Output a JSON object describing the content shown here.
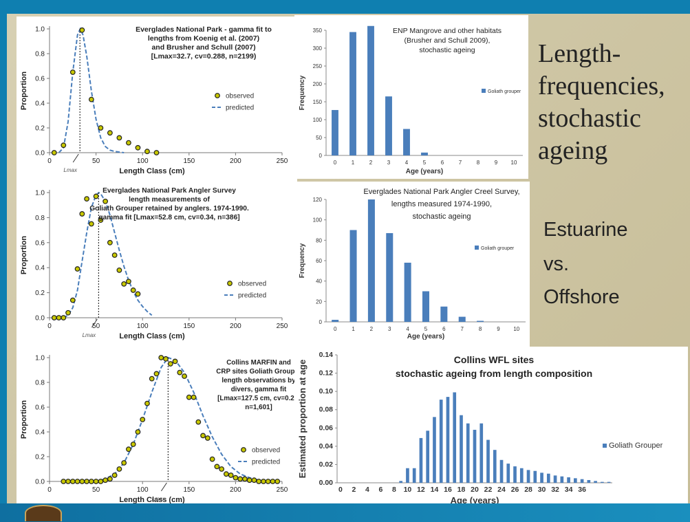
{
  "slide_title_lines": [
    "Length-",
    "frequencies,",
    "stochastic",
    "ageing"
  ],
  "side_labels": [
    "Estuarine",
    "vs.",
    "Offshore"
  ],
  "colors": {
    "frame": "#0f7fb0",
    "bar": "#4a7ebb",
    "marker_fill": "#c8c800",
    "marker_edge": "#222222",
    "fit_line": "#4a7ebb"
  },
  "chart_data": [
    {
      "id": "c1",
      "type": "scatter",
      "title_lines": [
        "Everglades National Park - gamma fit to",
        "lengths from Koenig et al. (2007)",
        "and Brusher and Schull (2007)",
        "[Lmax=32.7, cv=0.288, n=2199)"
      ],
      "xlabel": "Length Class (cm)",
      "ylabel": "Proportion",
      "xlim": [
        0,
        250
      ],
      "ylim": [
        0,
        1.0
      ],
      "xticks": [
        "0",
        "50",
        "100",
        "150",
        "200",
        "250"
      ],
      "yticks": [
        "0.0",
        "0.2",
        "0.4",
        "0.6",
        "0.8",
        "1.0"
      ],
      "annotation": "Lmax",
      "lmax": 32.7,
      "legend": [
        "observed",
        "predicted"
      ],
      "observed": {
        "x": [
          5,
          15,
          25,
          35,
          45,
          55,
          65,
          75,
          85,
          95,
          105,
          115
        ],
        "y": [
          0.0,
          0.06,
          0.65,
          0.99,
          0.43,
          0.2,
          0.16,
          0.12,
          0.08,
          0.04,
          0.01,
          0.0
        ]
      },
      "predicted": {
        "x": [
          10,
          15,
          20,
          25,
          30,
          33,
          36,
          40,
          45,
          50,
          55,
          60,
          65,
          70,
          80
        ],
        "y": [
          0.0,
          0.04,
          0.25,
          0.65,
          0.95,
          1.0,
          0.95,
          0.78,
          0.5,
          0.27,
          0.12,
          0.05,
          0.02,
          0.01,
          0.0
        ]
      }
    },
    {
      "id": "c2",
      "type": "bar",
      "title_lines": [
        "ENP Mangrove and other habitats",
        "(Brusher and Schull 2009),",
        "stochastic ageing"
      ],
      "xlabel": "Age (years)",
      "ylabel": "Frequency",
      "categories": [
        "0",
        "1",
        "2",
        "3",
        "4",
        "5",
        "6",
        "7",
        "8",
        "9",
        "10"
      ],
      "ylim": [
        0,
        350
      ],
      "yticks": [
        "0",
        "50",
        "100",
        "150",
        "200",
        "250",
        "300",
        "350"
      ],
      "series": [
        {
          "name": "Goliath grouper",
          "values": [
            127,
            345,
            362,
            165,
            74,
            8,
            0,
            0,
            0,
            0,
            0
          ]
        }
      ]
    },
    {
      "id": "c3",
      "type": "scatter",
      "title_lines": [
        "Everglades National Park Angler Survey",
        "length measurements of",
        "Goliath Grouper retained by anglers. 1974-1990.",
        "gamma fit [Lmax=52.8 cm, cv=0.34, n=386]"
      ],
      "xlabel": "Length Class (cm)",
      "ylabel": "Proportion",
      "xlim": [
        0,
        250
      ],
      "ylim": [
        0,
        1.0
      ],
      "xticks": [
        "0",
        "50",
        "100",
        "150",
        "200",
        "250"
      ],
      "yticks": [
        "0.0",
        "0.2",
        "0.4",
        "0.6",
        "0.8",
        "1.0"
      ],
      "annotation": "Lmax",
      "lmax": 52.8,
      "legend": [
        "observed",
        "predicted"
      ],
      "observed": {
        "x": [
          5,
          10,
          15,
          20,
          25,
          30,
          35,
          40,
          45,
          50,
          55,
          60,
          65,
          70,
          75,
          80,
          85,
          90,
          95
        ],
        "y": [
          0.0,
          0.0,
          0.0,
          0.04,
          0.14,
          0.39,
          0.83,
          0.95,
          0.75,
          0.97,
          0.78,
          0.93,
          0.6,
          0.5,
          0.38,
          0.27,
          0.29,
          0.22,
          0.19
        ]
      },
      "predicted": {
        "x": [
          15,
          20,
          25,
          30,
          35,
          40,
          45,
          50,
          53,
          55,
          60,
          65,
          70,
          75,
          80,
          85,
          90,
          95,
          100,
          105,
          110
        ],
        "y": [
          0.0,
          0.02,
          0.08,
          0.22,
          0.45,
          0.68,
          0.88,
          0.98,
          1.0,
          0.99,
          0.93,
          0.82,
          0.68,
          0.54,
          0.41,
          0.3,
          0.21,
          0.14,
          0.09,
          0.05,
          0.02
        ]
      }
    },
    {
      "id": "c4",
      "type": "bar",
      "title_lines": [
        "Everglades National Park Angler Creel Survey,",
        "lengths measured 1974-1990,",
        "stochastic ageing"
      ],
      "xlabel": "Age (years)",
      "ylabel": "Frequency",
      "categories": [
        "0",
        "1",
        "2",
        "3",
        "4",
        "5",
        "6",
        "7",
        "8",
        "9",
        "10"
      ],
      "ylim": [
        0,
        120
      ],
      "yticks": [
        "0",
        "20",
        "40",
        "60",
        "80",
        "100",
        "120"
      ],
      "series": [
        {
          "name": "Goliath grouper",
          "values": [
            2,
            90,
            120,
            87,
            58,
            30,
            15,
            5,
            1,
            0,
            0
          ]
        }
      ]
    },
    {
      "id": "c5",
      "type": "scatter",
      "title_lines": [
        "Collins MARFIN and",
        "CRP sites Goliath Grouper",
        "length observations by",
        "divers, gamma fit",
        "[Lmax=127.5 cm, cv=0.21,",
        "n=1,601]"
      ],
      "xlabel": "Length Class (cm)",
      "ylabel": "Proportion",
      "xlim": [
        0,
        250
      ],
      "ylim": [
        0,
        1.0
      ],
      "xticks": [
        "0",
        "50",
        "100",
        "150",
        "200",
        "250"
      ],
      "yticks": [
        "0.0",
        "0.2",
        "0.4",
        "0.6",
        "0.8",
        "1.0"
      ],
      "annotation": "Lmax",
      "lmax": 127.5,
      "legend": [
        "observed",
        "predicted"
      ],
      "observed": {
        "x": [
          15,
          20,
          25,
          30,
          35,
          40,
          45,
          50,
          55,
          60,
          65,
          70,
          75,
          80,
          85,
          90,
          95,
          100,
          105,
          110,
          115,
          120,
          125,
          130,
          135,
          140,
          145,
          150,
          155,
          160,
          165,
          170,
          175,
          180,
          185,
          190,
          195,
          200,
          205,
          210,
          215,
          220,
          225,
          230,
          235,
          240,
          245
        ],
        "y": [
          0.0,
          0.0,
          0.0,
          0.0,
          0.0,
          0.0,
          0.0,
          0.0,
          0.0,
          0.01,
          0.02,
          0.05,
          0.1,
          0.15,
          0.26,
          0.3,
          0.4,
          0.5,
          0.63,
          0.83,
          0.87,
          1.0,
          0.99,
          0.95,
          0.97,
          0.88,
          0.85,
          0.68,
          0.68,
          0.48,
          0.37,
          0.35,
          0.18,
          0.12,
          0.1,
          0.06,
          0.05,
          0.03,
          0.02,
          0.02,
          0.01,
          0.01,
          0.0,
          0.0,
          0.0,
          0.0,
          0.0
        ]
      },
      "predicted": {
        "x": [
          50,
          60,
          70,
          80,
          90,
          100,
          110,
          120,
          127.5,
          135,
          145,
          155,
          165,
          175,
          185,
          195,
          205,
          215,
          225
        ],
        "y": [
          0.0,
          0.02,
          0.06,
          0.15,
          0.3,
          0.5,
          0.72,
          0.92,
          1.0,
          0.98,
          0.88,
          0.72,
          0.53,
          0.36,
          0.22,
          0.12,
          0.06,
          0.03,
          0.01
        ]
      }
    },
    {
      "id": "c6",
      "type": "bar",
      "title_lines": [
        "Collins WFL sites",
        "stochastic ageing from length composition"
      ],
      "xlabel": "Age (years)",
      "ylabel": "Estimated proportion at age",
      "categories": [
        "0",
        "1",
        "2",
        "3",
        "4",
        "5",
        "6",
        "7",
        "8",
        "9",
        "10",
        "11",
        "12",
        "13",
        "14",
        "15",
        "16",
        "17",
        "18",
        "19",
        "20",
        "21",
        "22",
        "23",
        "24",
        "25",
        "26",
        "27",
        "28",
        "29",
        "30",
        "31",
        "32",
        "33",
        "34",
        "35",
        "36",
        "37",
        "38",
        "39",
        "40"
      ],
      "tick_labels": [
        "0",
        "2",
        "4",
        "6",
        "8",
        "10",
        "12",
        "14",
        "16",
        "18",
        "20",
        "22",
        "24",
        "26",
        "28",
        "30",
        "32",
        "34",
        "36"
      ],
      "ylim": [
        0,
        0.14
      ],
      "yticks": [
        "0.00",
        "0.02",
        "0.04",
        "0.06",
        "0.08",
        "0.10",
        "0.12",
        "0.14"
      ],
      "series": [
        {
          "name": "Goliath Grouper",
          "values": [
            0,
            0,
            0,
            0,
            0,
            0,
            0,
            0,
            0,
            0.002,
            0.016,
            0.016,
            0.049,
            0.057,
            0.072,
            0.091,
            0.094,
            0.099,
            0.074,
            0.065,
            0.058,
            0.065,
            0.047,
            0.036,
            0.025,
            0.021,
            0.018,
            0.016,
            0.014,
            0.013,
            0.011,
            0.01,
            0.008,
            0.007,
            0.006,
            0.005,
            0.004,
            0.003,
            0.002,
            0.001,
            0.001
          ]
        }
      ]
    }
  ]
}
